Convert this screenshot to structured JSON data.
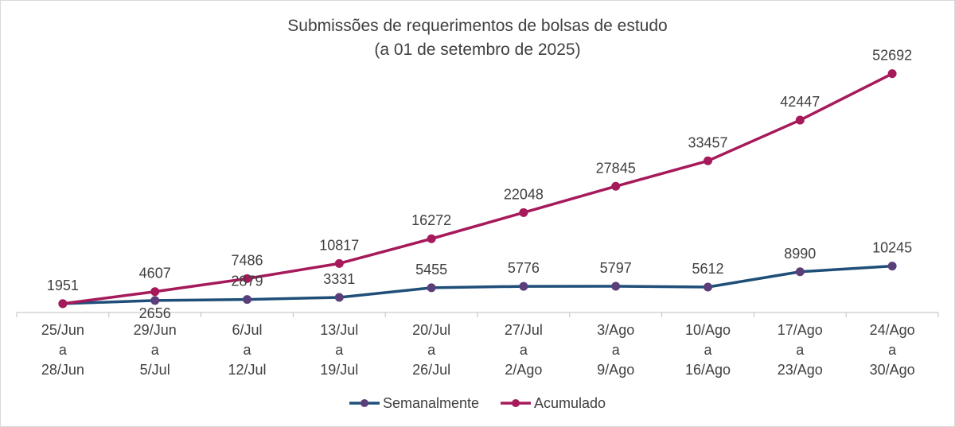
{
  "chart_data": {
    "type": "line",
    "title": "Submissões de requerimentos de bolsas de estudo",
    "subtitle": "(a 01 de setembro de 2025)",
    "categories": [
      [
        "25/Jun",
        "a",
        "28/Jun"
      ],
      [
        "29/Jun",
        "a",
        "5/Jul"
      ],
      [
        "6/Jul",
        "a",
        "12/Jul"
      ],
      [
        "13/Jul",
        "a",
        "19/Jul"
      ],
      [
        "20/Jul",
        "a",
        "26/Jul"
      ],
      [
        "27/Jul",
        "a",
        "2/Ago"
      ],
      [
        "3/Ago",
        "a",
        "9/Ago"
      ],
      [
        "10/Ago",
        "a",
        "16/Ago"
      ],
      [
        "17/Ago",
        "a",
        "23/Ago"
      ],
      [
        "24/Ago",
        "a",
        "30/Ago"
      ]
    ],
    "series": [
      {
        "name": "Semanalmente",
        "color": "#1f4e79",
        "marker_color": "#5b3f7a",
        "values": [
          1951,
          2656,
          2879,
          3331,
          5455,
          5776,
          5797,
          5612,
          8990,
          10245
        ],
        "labels": [
          "",
          "2656",
          "2879",
          "3331",
          "5455",
          "5776",
          "5797",
          "5612",
          "8990",
          "10245"
        ]
      },
      {
        "name": "Acumulado",
        "color": "#a6195a",
        "marker_color": "#a6195a",
        "values": [
          1951,
          4607,
          7486,
          10817,
          16272,
          22048,
          27845,
          33457,
          42447,
          52692
        ],
        "labels": [
          "1951",
          "4607",
          "7486",
          "10817",
          "16272",
          "22048",
          "27845",
          "33457",
          "42447",
          "52692"
        ]
      }
    ],
    "ylim": [
      0,
      60000
    ],
    "grid": false,
    "legend": "bottom"
  }
}
